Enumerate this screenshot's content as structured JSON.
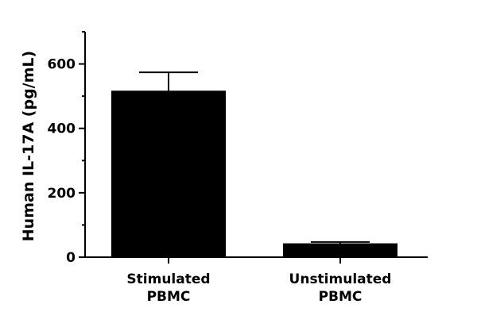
{
  "chart_data": {
    "type": "bar",
    "categories": [
      [
        "Stimulated",
        "PBMC"
      ],
      [
        "Unstimulated",
        "PBMC"
      ]
    ],
    "values": [
      517,
      43
    ],
    "error_upper": [
      574,
      47
    ],
    "title": "",
    "xlabel": "",
    "ylabel": "Human IL-17A (pg/mL)",
    "ylim": [
      0,
      700
    ],
    "yticks": [
      0,
      200,
      400,
      600
    ],
    "minor_yticks": [
      100,
      300,
      500,
      700
    ],
    "grid": false,
    "bar_color": "#000000"
  }
}
